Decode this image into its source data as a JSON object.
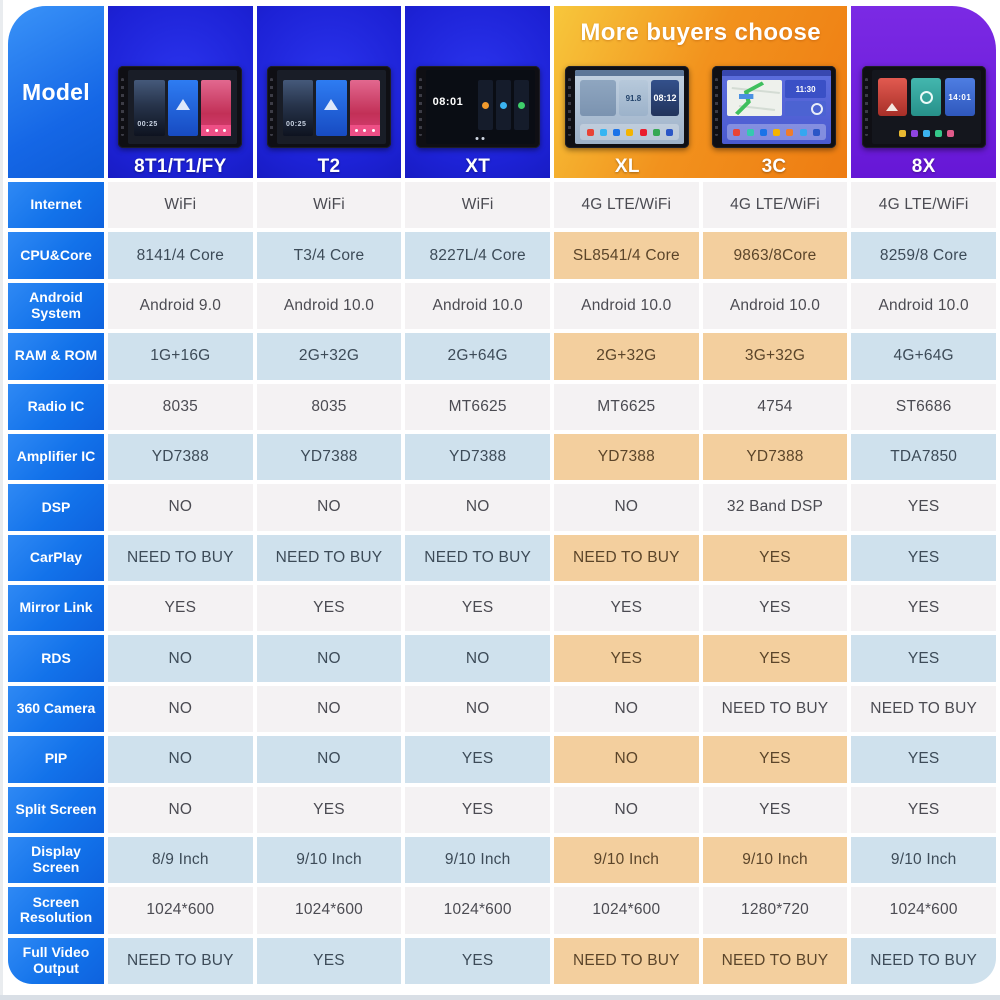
{
  "header": {
    "model_label": "Model",
    "banner": {
      "text": "More buyers choose",
      "bg_from": "#f7c73c",
      "bg_to": "#ee7c12"
    },
    "models": [
      {
        "id": "8t1",
        "name": "8T1/T1/FY",
        "type": "media",
        "screen_time": "00:25"
      },
      {
        "id": "t2",
        "name": "T2",
        "type": "media",
        "screen_time": "00:25"
      },
      {
        "id": "xt",
        "name": "XT",
        "type": "grid",
        "screen_time": "08:01"
      },
      {
        "id": "xl",
        "name": "XL",
        "type": "dash",
        "screen_time": "08:12",
        "dial": "91.8"
      },
      {
        "id": "3c",
        "name": "3C",
        "type": "map",
        "screen_time": "11:30"
      },
      {
        "id": "8x",
        "name": "8X",
        "type": "cards",
        "screen_time": "14:01"
      }
    ]
  },
  "table": {
    "rows": [
      {
        "label": "Internet",
        "values": [
          "WiFi",
          "WiFi",
          "WiFi",
          "4G LTE/WiFi",
          "4G LTE/WiFi",
          "4G LTE/WiFi"
        ]
      },
      {
        "label": "CPU&Core",
        "values": [
          "8141/4 Core",
          "T3/4 Core",
          "8227L/4 Core",
          "SL8541/4 Core",
          "9863/8Core",
          "8259/8 Core"
        ]
      },
      {
        "label": "Android System",
        "values": [
          "Android 9.0",
          "Android 10.0",
          "Android 10.0",
          "Android 10.0",
          "Android 10.0",
          "Android 10.0"
        ]
      },
      {
        "label": "RAM & ROM",
        "values": [
          "1G+16G",
          "2G+32G",
          "2G+64G",
          "2G+32G",
          "3G+32G",
          "4G+64G"
        ]
      },
      {
        "label": "Radio IC",
        "values": [
          "8035",
          "8035",
          "MT6625",
          "MT6625",
          "4754",
          "ST6686"
        ]
      },
      {
        "label": "Amplifier IC",
        "values": [
          "YD7388",
          "YD7388",
          "YD7388",
          "YD7388",
          "YD7388",
          "TDA7850"
        ]
      },
      {
        "label": "DSP",
        "values": [
          "NO",
          "NO",
          "NO",
          "NO",
          "32 Band DSP",
          "YES"
        ]
      },
      {
        "label": "CarPlay",
        "values": [
          "NEED TO BUY",
          "NEED TO BUY",
          "NEED TO BUY",
          "NEED TO BUY",
          "YES",
          "YES"
        ]
      },
      {
        "label": "Mirror Link",
        "values": [
          "YES",
          "YES",
          "YES",
          "YES",
          "YES",
          "YES"
        ]
      },
      {
        "label": "RDS",
        "values": [
          "NO",
          "NO",
          "NO",
          "YES",
          "YES",
          "YES"
        ]
      },
      {
        "label": "360 Camera",
        "values": [
          "NO",
          "NO",
          "NO",
          "NO",
          "NEED TO BUY",
          "NEED TO BUY"
        ]
      },
      {
        "label": "PIP",
        "values": [
          "NO",
          "NO",
          "YES",
          "NO",
          "YES",
          "YES"
        ]
      },
      {
        "label": "Split Screen",
        "values": [
          "NO",
          "YES",
          "YES",
          "NO",
          "YES",
          "YES"
        ]
      },
      {
        "label": "Display Screen",
        "values": [
          "8/9 Inch",
          "9/10 Inch",
          "9/10 Inch",
          "9/10 Inch",
          "9/10 Inch",
          "9/10 Inch"
        ]
      },
      {
        "label": "Screen Resolution",
        "values": [
          "1024*600",
          "1024*600",
          "1024*600",
          "1024*600",
          "1280*720",
          "1024*600"
        ]
      },
      {
        "label": "Full Video Output",
        "values": [
          "NEED TO BUY",
          "YES",
          "YES",
          "NEED TO BUY",
          "NEED TO BUY",
          "NEED TO BUY"
        ]
      }
    ]
  },
  "colors": {
    "label_blue": "#1272ea",
    "header_blue": "#1d22d6",
    "accent_purple": "#6d1fd9",
    "row_white": "#f4f2f3",
    "row_blue": "#cfe1ed",
    "row_peach": "#f3cf9e"
  }
}
